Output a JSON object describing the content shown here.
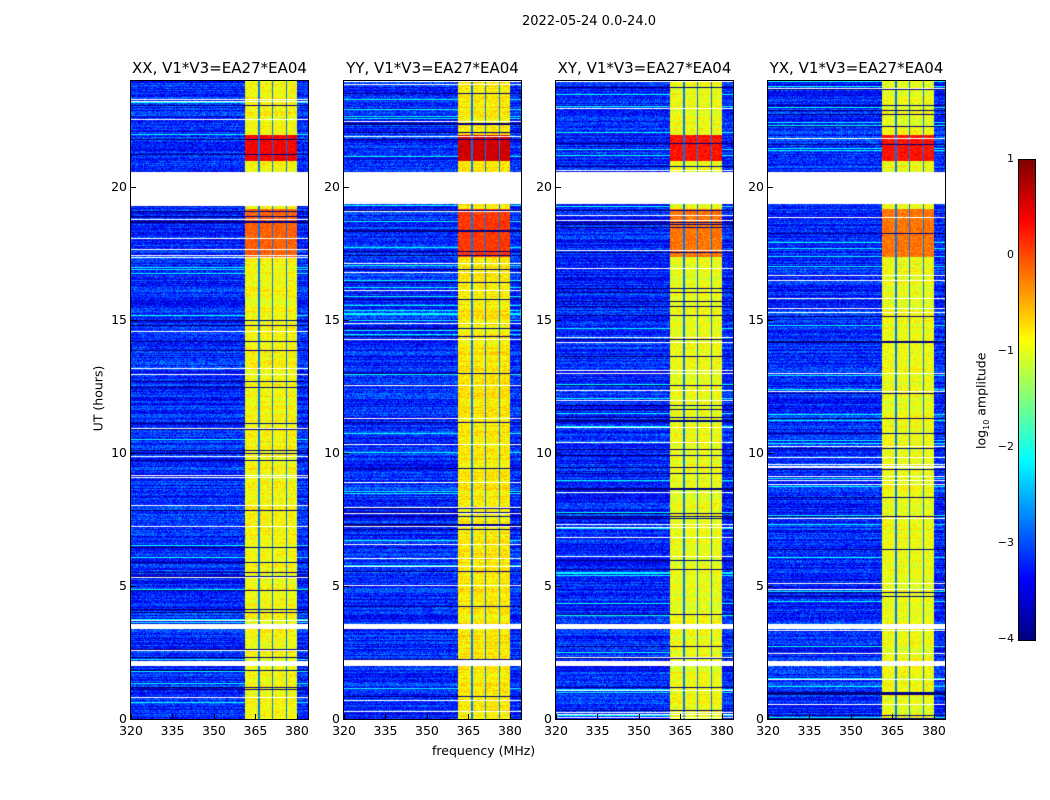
{
  "suptitle": "2022-05-24 0.0-24.0",
  "xlabel": "frequency (MHz)",
  "ylabel": "UT (hours)",
  "colorbar": {
    "label_main": "log",
    "label_sub": "10",
    "label_rest": " amplitude",
    "range": [
      -4,
      1
    ],
    "ticks": [
      "1",
      "0",
      "−1",
      "−2",
      "−3",
      "−4"
    ],
    "tick_values": [
      1,
      0,
      -1,
      -2,
      -3,
      -4
    ],
    "colormap": "jet"
  },
  "chart_data": {
    "type": "heatmap",
    "title": "2022-05-24 0.0-24.0",
    "xlabel": "frequency (MHz)",
    "ylabel": "UT (hours)",
    "xlim": [
      320,
      384
    ],
    "ylim": [
      0,
      24
    ],
    "xticks": [
      "320",
      "335",
      "350",
      "365",
      "380"
    ],
    "xtick_values": [
      320,
      335,
      350,
      365,
      380
    ],
    "yticks": [
      "0",
      "5",
      "10",
      "15",
      "20"
    ],
    "ytick_values": [
      0,
      5,
      10,
      15,
      20
    ],
    "value_label": "log10 amplitude",
    "panels": [
      {
        "title": "XX, V1*V3=EA27*EA04",
        "band_level": -0.9,
        "hot_level": 0.4,
        "seed": 11
      },
      {
        "title": "YY, V1*V3=EA27*EA04",
        "band_level": -0.8,
        "hot_level": 0.6,
        "seed": 23
      },
      {
        "title": "XY, V1*V3=EA27*EA04",
        "band_level": -0.95,
        "hot_level": 0.3,
        "seed": 37
      },
      {
        "title": "YX, V1*V3=EA27*EA04",
        "band_level": -0.95,
        "hot_level": 0.3,
        "seed": 51
      }
    ],
    "background_level": -3.2,
    "rfi_band_mhz": [
      361,
      380
    ],
    "rfi_channel_edges_mhz": [
      366,
      371,
      376
    ],
    "flagged_gaps_hours": [
      [
        19.4,
        20.6
      ],
      [
        3.4,
        3.6
      ],
      [
        2.0,
        2.2
      ]
    ],
    "strong_rfi_hours": [
      [
        21.0,
        22.0
      ],
      [
        17.4,
        19.2
      ]
    ]
  }
}
